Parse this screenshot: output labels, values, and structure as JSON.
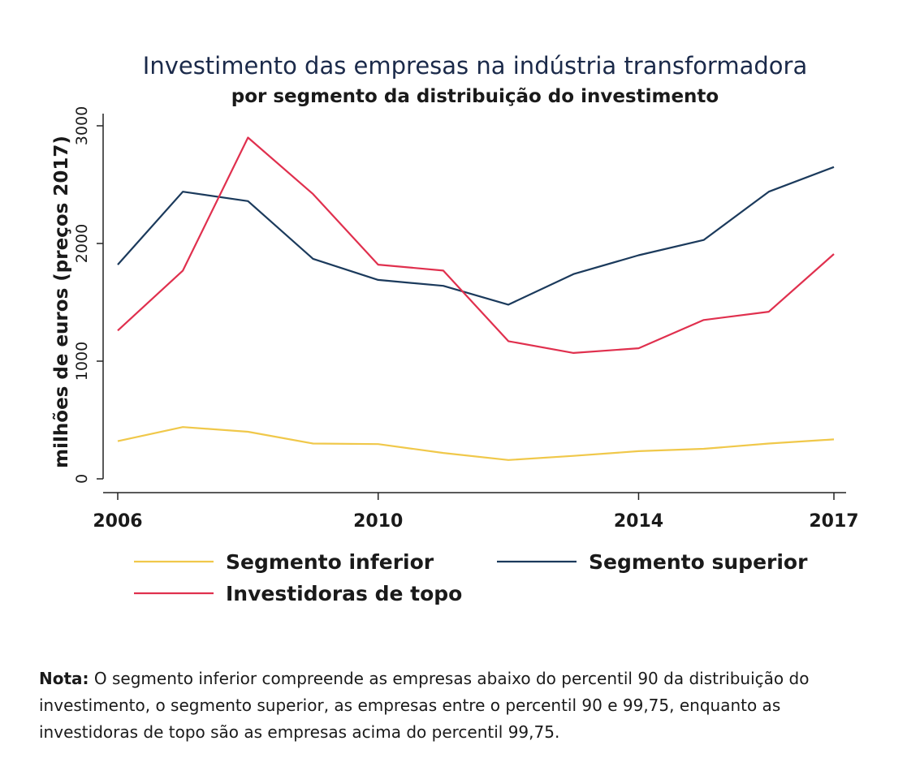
{
  "chart_data": {
    "type": "line",
    "title": "Investimento das empresas na indústria transformadora",
    "subtitle": "por segmento da distribuição do investimento",
    "ylabel": "milhões de euros (preços 2017)",
    "xlabel": "",
    "x": [
      2006,
      2007,
      2008,
      2009,
      2010,
      2011,
      2012,
      2013,
      2014,
      2015,
      2016,
      2017
    ],
    "x_ticks": [
      "2006",
      "2010",
      "2014",
      "2017"
    ],
    "y_ticks": [
      "0",
      "1000",
      "2000",
      "3000"
    ],
    "xlim": [
      2006,
      2017
    ],
    "ylim": [
      0,
      3000
    ],
    "grid": false,
    "legend_position": "bottom",
    "series": [
      {
        "name": "Segmento inferior",
        "color": "#f0c84a",
        "values": [
          320,
          440,
          400,
          300,
          295,
          220,
          160,
          195,
          235,
          255,
          300,
          335
        ]
      },
      {
        "name": "Segmento superior",
        "color": "#1b3a5c",
        "values": [
          1820,
          2440,
          2360,
          1870,
          1690,
          1640,
          1480,
          1740,
          1900,
          2030,
          2440,
          2650
        ]
      },
      {
        "name": "Investidoras de topo",
        "color": "#e0304e",
        "values": [
          1260,
          1770,
          2900,
          2420,
          1820,
          1770,
          1170,
          1070,
          1110,
          1350,
          1420,
          1910
        ]
      }
    ]
  },
  "note": {
    "label": "Nota:",
    "text": " O segmento inferior compreende as empresas abaixo do percentil 90 da distribuição do investimento, o segmento superior, as empresas entre o percentil 90 e 99,75, enquanto as investidoras de topo são as empresas acima do percentil 99,75."
  }
}
